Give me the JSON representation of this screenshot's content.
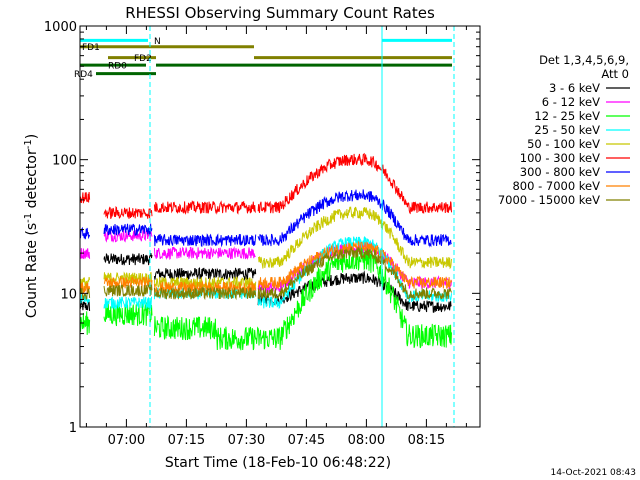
{
  "chart_data": {
    "type": "line",
    "title": "RHESSI Observing Summary Count Rates",
    "xlabel": "Start Time (18-Feb-10 06:48:22)",
    "ylabel_parts": [
      "Count Rate (s",
      "-1",
      " detector",
      "-1",
      ")"
    ],
    "yscale": "log",
    "ylim": [
      1,
      1000
    ],
    "xlim_minutes": [
      0,
      100
    ],
    "x_unit": "minutes since start",
    "yticks": [
      {
        "value": 1,
        "label": "1"
      },
      {
        "value": 10,
        "label": "10"
      },
      {
        "value": 100,
        "label": "100"
      },
      {
        "value": 1000,
        "label": "1000"
      }
    ],
    "xticks": [
      {
        "value": 11.6,
        "label": "07:00"
      },
      {
        "value": 26.6,
        "label": "07:15"
      },
      {
        "value": 41.6,
        "label": "07:30"
      },
      {
        "value": 56.6,
        "label": "07:45"
      },
      {
        "value": 71.6,
        "label": "08:00"
      },
      {
        "value": 86.6,
        "label": "08:15"
      }
    ],
    "legend_header": [
      "Det 1,3,4,5,6,9,",
      "Att 0"
    ],
    "series": [
      {
        "name": "3 - 6 keV",
        "color": "#000000",
        "segments": [
          [
            0,
            2.5,
            8
          ],
          [
            6,
            18,
            18
          ],
          [
            18.5,
            44,
            14
          ],
          [
            44.5,
            50,
            9
          ]
        ],
        "peak": 13,
        "rise": [
          50,
          68
        ],
        "decay": [
          71,
          82
        ],
        "post": 8,
        "end": 93
      },
      {
        "name": "6 - 12 keV",
        "color": "#ff00ff",
        "segments": [
          [
            0,
            2.5,
            20
          ],
          [
            6,
            18,
            27
          ],
          [
            18.5,
            44,
            20
          ],
          [
            44.5,
            50,
            11
          ]
        ],
        "peak": 22,
        "rise": [
          50,
          68
        ],
        "decay": [
          71,
          82
        ],
        "post": 12,
        "end": 93
      },
      {
        "name": "12 - 25 keV",
        "color": "#00ff00",
        "segments": [
          [
            0,
            2.5,
            6
          ],
          [
            6,
            18,
            7
          ],
          [
            18.5,
            34,
            5.5
          ],
          [
            34,
            50,
            4.6
          ]
        ],
        "peak": 18,
        "rise": [
          50,
          68
        ],
        "decay": [
          71,
          82
        ],
        "post": 4.8,
        "end": 93
      },
      {
        "name": "25 - 50 keV",
        "color": "#00ffff",
        "segments": [
          [
            0,
            2.5,
            9
          ],
          [
            6,
            18,
            8.5
          ],
          [
            18.5,
            44,
            10
          ],
          [
            44.5,
            50,
            8.5
          ]
        ],
        "peak": 24,
        "rise": [
          50,
          68
        ],
        "decay": [
          71,
          82
        ],
        "post": 9.5,
        "end": 93
      },
      {
        "name": "50 - 100 keV",
        "color": "#c8c800",
        "segments": [
          [
            0,
            2.5,
            12
          ],
          [
            6,
            18,
            13
          ],
          [
            18.5,
            44,
            12
          ],
          [
            44.5,
            50,
            17
          ]
        ],
        "peak": 40,
        "rise": [
          50,
          68
        ],
        "decay": [
          71,
          82
        ],
        "post": 17,
        "end": 93
      },
      {
        "name": "100 - 300 keV",
        "color": "#ff0000",
        "segments": [
          [
            0,
            2.5,
            52
          ],
          [
            6,
            18,
            40
          ],
          [
            18.5,
            44,
            44
          ],
          [
            44.5,
            50,
            44
          ]
        ],
        "peak": 100,
        "rise": [
          50,
          68
        ],
        "decay": [
          71,
          82
        ],
        "post": 44,
        "end": 93
      },
      {
        "name": "300 - 800 keV",
        "color": "#0000ff",
        "segments": [
          [
            0,
            2.5,
            28
          ],
          [
            6,
            18,
            30
          ],
          [
            18.5,
            44,
            25
          ],
          [
            44.5,
            50,
            25
          ]
        ],
        "peak": 54,
        "rise": [
          50,
          68
        ],
        "decay": [
          71,
          82
        ],
        "post": 25,
        "end": 93
      },
      {
        "name": "800 - 7000 keV",
        "color": "#ff8000",
        "segments": [
          [
            0,
            2.5,
            11
          ],
          [
            6,
            18,
            12
          ],
          [
            18.5,
            44,
            11
          ],
          [
            44.5,
            50,
            12
          ]
        ],
        "peak": 22,
        "rise": [
          50,
          68
        ],
        "decay": [
          71,
          82
        ],
        "post": 12,
        "end": 93
      },
      {
        "name": "7000 - 15000 keV",
        "color": "#808000",
        "segments": [
          [
            0,
            2.5,
            10
          ],
          [
            6,
            18,
            10.5
          ],
          [
            18.5,
            44,
            10
          ],
          [
            44.5,
            50,
            10
          ]
        ],
        "peak": 20,
        "rise": [
          50,
          68
        ],
        "decay": [
          71,
          82
        ],
        "post": 10,
        "end": 93
      }
    ],
    "flag_bars": [
      {
        "label": "N",
        "color": "#00ffff",
        "y": 780,
        "spans": [
          [
            0,
            17
          ]
        ]
      },
      {
        "label": "",
        "color": "#00ffff",
        "y": 780,
        "spans": [
          [
            75.5,
            93
          ]
        ]
      },
      {
        "label": "FD1",
        "color": "#808000",
        "y": 700,
        "spans": [
          [
            0,
            43.5
          ]
        ]
      },
      {
        "label": "FD2",
        "color": "#808000",
        "y": 580,
        "spans": [
          [
            7,
            19
          ],
          [
            43.5,
            93
          ]
        ]
      },
      {
        "label": "RD0",
        "color": "#006400",
        "y": 510,
        "spans": [
          [
            0,
            16.5
          ],
          [
            19,
            93
          ]
        ]
      },
      {
        "label": "RD4",
        "color": "#006400",
        "y": 440,
        "spans": [
          [
            4,
            19
          ]
        ]
      }
    ],
    "vertical_markers": [
      {
        "x": 0,
        "color": "#00ffff",
        "style": "solid"
      },
      {
        "x": 17.5,
        "color": "#00ffff",
        "style": "dashed"
      },
      {
        "x": 75.5,
        "color": "#00ffff",
        "style": "solid"
      },
      {
        "x": 93.5,
        "color": "#00ffff",
        "style": "dashed"
      }
    ],
    "footer_timestamp": "14-Oct-2021 08:43"
  }
}
